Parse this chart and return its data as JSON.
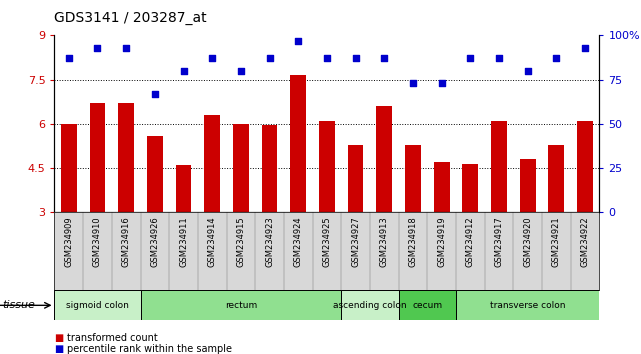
{
  "title": "GDS3141 / 203287_at",
  "samples": [
    "GSM234909",
    "GSM234910",
    "GSM234916",
    "GSM234926",
    "GSM234911",
    "GSM234914",
    "GSM234915",
    "GSM234923",
    "GSM234924",
    "GSM234925",
    "GSM234927",
    "GSM234913",
    "GSM234918",
    "GSM234919",
    "GSM234912",
    "GSM234917",
    "GSM234920",
    "GSM234921",
    "GSM234922"
  ],
  "bar_values": [
    6.0,
    6.7,
    6.7,
    5.6,
    4.6,
    6.3,
    6.0,
    5.95,
    7.65,
    6.1,
    5.3,
    6.6,
    5.3,
    4.7,
    4.65,
    6.1,
    4.8,
    5.3,
    6.1
  ],
  "percentile_values": [
    87,
    93,
    93,
    67,
    80,
    87,
    80,
    87,
    97,
    87,
    87,
    87,
    73,
    73,
    87,
    87,
    80,
    87,
    93
  ],
  "bar_color": "#cc0000",
  "dot_color": "#0000cc",
  "ylim_left": [
    3,
    9
  ],
  "ylim_right": [
    0,
    100
  ],
  "yticks_left": [
    3,
    4.5,
    6,
    7.5,
    9
  ],
  "yticks_right": [
    0,
    25,
    50,
    75,
    100
  ],
  "ytick_labels_right": [
    "0",
    "25",
    "50",
    "75",
    "100%"
  ],
  "gridlines": [
    4.5,
    6.0,
    7.5
  ],
  "tissue_groups": [
    {
      "label": "sigmoid colon",
      "start": 0,
      "end": 3,
      "color": "#c8f0c8"
    },
    {
      "label": "rectum",
      "start": 3,
      "end": 10,
      "color": "#90e090"
    },
    {
      "label": "ascending colon",
      "start": 10,
      "end": 12,
      "color": "#c8f0c8"
    },
    {
      "label": "cecum",
      "start": 12,
      "end": 14,
      "color": "#50c850"
    },
    {
      "label": "transverse colon",
      "start": 14,
      "end": 19,
      "color": "#90e090"
    }
  ],
  "legend_items": [
    {
      "label": "transformed count",
      "color": "#cc0000"
    },
    {
      "label": "percentile rank within the sample",
      "color": "#0000cc"
    }
  ],
  "bar_width": 0.55,
  "background_color": "#ffffff",
  "label_bg_color": "#d8d8d8",
  "tissue_label": "tissue"
}
